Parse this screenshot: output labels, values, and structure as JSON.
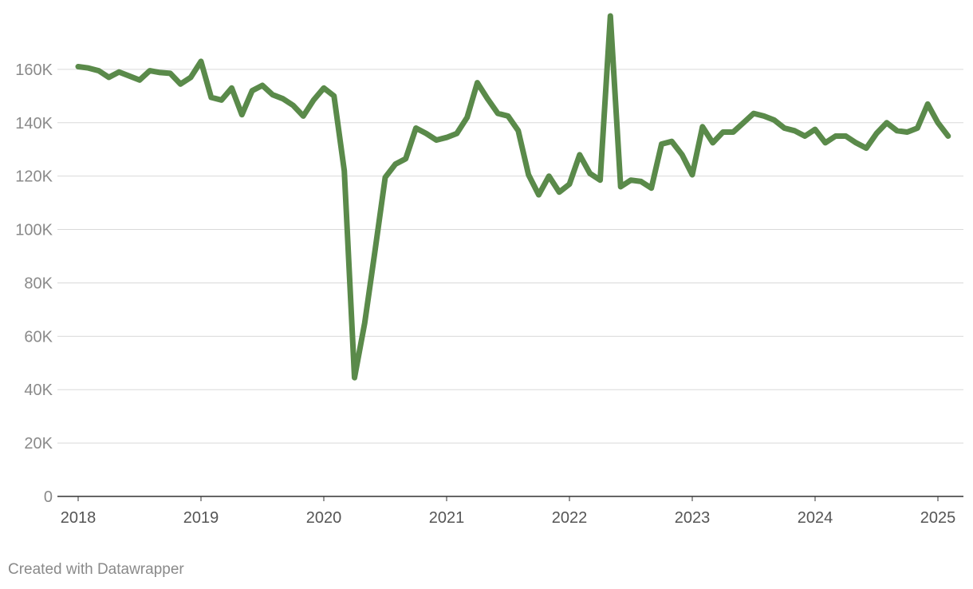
{
  "chart_data": {
    "type": "line",
    "title": "",
    "xlabel": "",
    "ylabel": "",
    "ylim": [
      0,
      180000
    ],
    "yticks": [
      0,
      20000,
      40000,
      60000,
      80000,
      100000,
      120000,
      140000,
      160000
    ],
    "ytick_labels": [
      "0",
      "20K",
      "40K",
      "60K",
      "80K",
      "100K",
      "120K",
      "140K",
      "160K"
    ],
    "xticks": [
      2018,
      2019,
      2020,
      2021,
      2022,
      2023,
      2024,
      2025
    ],
    "xtick_labels": [
      "2018",
      "2019",
      "2020",
      "2021",
      "2022",
      "2023",
      "2024",
      "2025"
    ],
    "grid": true,
    "series_color": "#5a8a4a",
    "x": [
      2018.0,
      2018.083,
      2018.167,
      2018.25,
      2018.333,
      2018.417,
      2018.5,
      2018.583,
      2018.667,
      2018.75,
      2018.833,
      2018.917,
      2019.0,
      2019.083,
      2019.167,
      2019.25,
      2019.333,
      2019.417,
      2019.5,
      2019.583,
      2019.667,
      2019.75,
      2019.833,
      2019.917,
      2020.0,
      2020.083,
      2020.167,
      2020.25,
      2020.333,
      2020.417,
      2020.5,
      2020.583,
      2020.667,
      2020.75,
      2020.833,
      2020.917,
      2021.0,
      2021.083,
      2021.167,
      2021.25,
      2021.333,
      2021.417,
      2021.5,
      2021.583,
      2021.667,
      2021.75,
      2021.833,
      2021.917,
      2022.0,
      2022.083,
      2022.167,
      2022.25,
      2022.333,
      2022.417,
      2022.5,
      2022.583,
      2022.667,
      2022.75,
      2022.833,
      2022.917,
      2023.0,
      2023.083,
      2023.167,
      2023.25,
      2023.333,
      2023.417,
      2023.5,
      2023.583,
      2023.667,
      2023.75,
      2023.833,
      2023.917,
      2024.0,
      2024.083,
      2024.167,
      2024.25,
      2024.333,
      2024.417,
      2024.5,
      2024.583,
      2024.667,
      2024.75,
      2024.833,
      2024.917,
      2025.0,
      2025.083
    ],
    "values": [
      161000,
      160500,
      159500,
      157000,
      159000,
      157500,
      156000,
      159500,
      158800,
      158500,
      154500,
      157000,
      163000,
      149500,
      148500,
      153000,
      143000,
      152000,
      154000,
      150500,
      149000,
      146500,
      142500,
      148500,
      153000,
      150000,
      122000,
      44500,
      65000,
      92000,
      119500,
      124500,
      126500,
      138000,
      136000,
      133500,
      134500,
      136000,
      142000,
      155000,
      149000,
      143500,
      142500,
      137000,
      120500,
      113000,
      120000,
      114000,
      117000,
      128000,
      121000,
      118500,
      180000,
      116000,
      118500,
      118000,
      115500,
      132000,
      133000,
      128000,
      120500,
      138500,
      132500,
      136500,
      136500,
      140000,
      143500,
      142500,
      141000,
      138000,
      137000,
      135000,
      137500,
      132500,
      135000,
      135000,
      132500,
      130500,
      136000,
      140000,
      137000,
      136500,
      138000,
      147000,
      140000,
      135000
    ]
  },
  "footer": {
    "credit": "Created with Datawrapper"
  }
}
